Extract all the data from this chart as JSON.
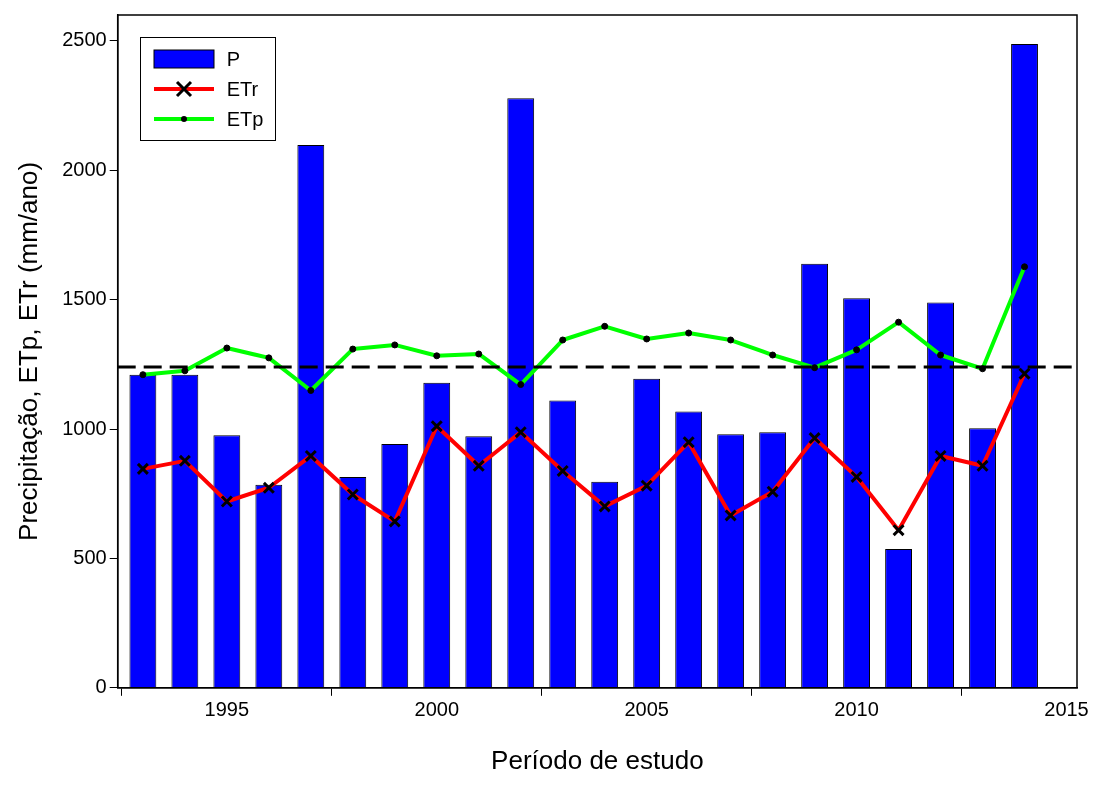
{
  "chart_data": {
    "type": "bar",
    "xlabel": "Período de estudo",
    "ylabel": "Precipitação, ETp, ETr (mm/ano)",
    "x": [
      1993,
      1994,
      1995,
      1996,
      1997,
      1998,
      1999,
      2000,
      2001,
      2002,
      2003,
      2004,
      2005,
      2006,
      2007,
      2008,
      2009,
      2010,
      2011,
      2012,
      2013,
      2014
    ],
    "series": [
      {
        "name": "P",
        "color": "#0000ff",
        "values": [
          1210,
          1210,
          976,
          785,
          2098,
          815,
          942,
          1179,
          972,
          2278,
          1110,
          796,
          1194,
          1068,
          980,
          988,
          1639,
          1505,
          536,
          1489,
          1003,
          2488
        ]
      },
      {
        "name": "ETr",
        "type": "line",
        "color": "#ff0000",
        "marker": "cross",
        "values": [
          846,
          877,
          720,
          773,
          896,
          747,
          643,
          1011,
          858,
          988,
          838,
          701,
          781,
          949,
          666,
          758,
          965,
          815,
          609,
          896,
          858,
          1214
        ]
      },
      {
        "name": "ETp",
        "type": "line",
        "color": "#00ff00",
        "marker": "circle",
        "values": [
          1210,
          1225,
          1313,
          1275,
          1149,
          1309,
          1325,
          1283,
          1290,
          1172,
          1344,
          1397,
          1348,
          1371,
          1344,
          1286,
          1237,
          1306,
          1413,
          1286,
          1233,
          1627
        ]
      }
    ],
    "xlim": [
      1992.4,
      2015.25
    ],
    "xticks": [
      1995,
      2000,
      2005,
      2010,
      2015
    ],
    "ylim": [
      0,
      2600
    ],
    "yticks": [
      0,
      500,
      1000,
      1500,
      2000,
      2500
    ],
    "ref_lines": [
      {
        "axis": "y",
        "value": 1240,
        "color": "#000000",
        "line_style": "dashed"
      }
    ],
    "grid": false,
    "legend": "top left"
  }
}
